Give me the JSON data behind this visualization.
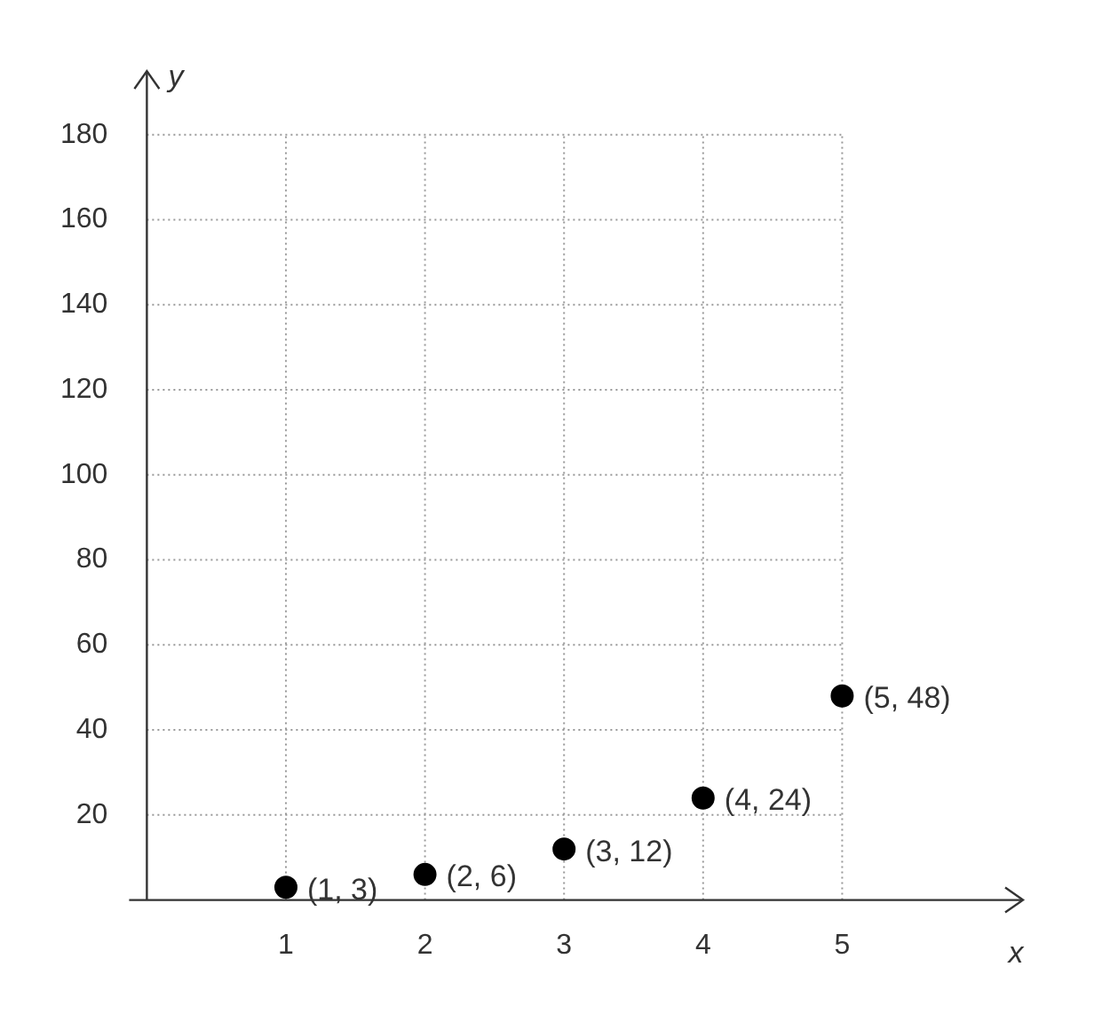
{
  "chart_data": {
    "type": "scatter",
    "xlabel": "x",
    "ylabel": "y",
    "x": [
      1,
      2,
      3,
      4,
      5
    ],
    "values": [
      3,
      6,
      12,
      24,
      48
    ],
    "color": "#000000",
    "marker": "circle",
    "xlim": [
      0,
      6.3
    ],
    "ylim": [
      0,
      195
    ],
    "xticks": [
      1,
      2,
      3,
      4,
      5
    ],
    "yticks": [
      20,
      40,
      60,
      80,
      100,
      120,
      140,
      160,
      180
    ],
    "grid": true,
    "annotations": [
      {
        "text": "(1, 3)",
        "x": 1,
        "y": 3
      },
      {
        "text": "(2, 6)",
        "x": 2,
        "y": 6
      },
      {
        "text": "(3, 12)",
        "x": 3,
        "y": 12
      },
      {
        "text": "(4, 24)",
        "x": 4,
        "y": 24
      },
      {
        "text": "(5, 48)",
        "x": 5,
        "y": 48
      }
    ]
  }
}
